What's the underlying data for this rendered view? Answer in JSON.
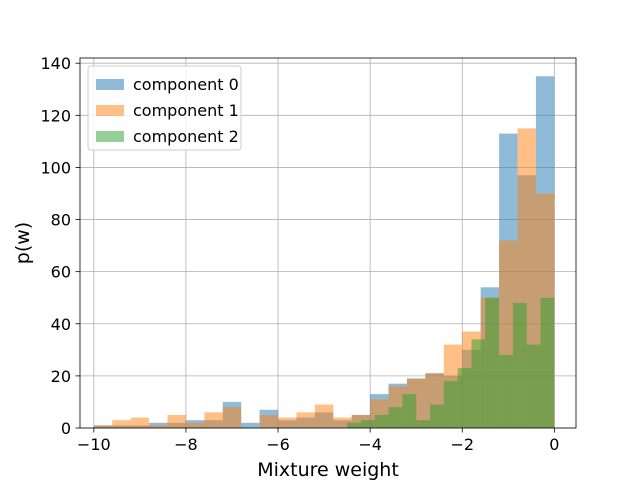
{
  "chart_data": {
    "type": "histogram",
    "xlabel": "Mixture weight",
    "ylabel": "p(w)",
    "xlim": [
      -10.3,
      0.47
    ],
    "ylim": [
      0,
      142
    ],
    "xticks": [
      -10,
      -8,
      -6,
      -4,
      -2,
      0
    ],
    "xtick_labels": [
      "−10",
      "−8",
      "−6",
      "−4",
      "−2",
      "0"
    ],
    "yticks": [
      0,
      20,
      40,
      60,
      80,
      100,
      120,
      140
    ],
    "ytick_labels": [
      "0",
      "20",
      "40",
      "60",
      "80",
      "100",
      "120",
      "140"
    ],
    "grid": true,
    "legend_position": "top-left",
    "series": [
      {
        "name": "component 0",
        "color": "#1f77b4",
        "alpha": 0.5,
        "bins": [
          [
            -10.0,
            -9.6,
            1
          ],
          [
            -9.6,
            -9.2,
            1
          ],
          [
            -9.2,
            -8.8,
            1
          ],
          [
            -8.8,
            -8.4,
            2
          ],
          [
            -8.4,
            -8.0,
            2
          ],
          [
            -8.0,
            -7.6,
            3
          ],
          [
            -7.6,
            -7.2,
            3
          ],
          [
            -7.2,
            -6.8,
            10
          ],
          [
            -6.8,
            -6.4,
            2
          ],
          [
            -6.4,
            -6.0,
            7
          ],
          [
            -6.0,
            -5.6,
            3
          ],
          [
            -5.6,
            -5.2,
            4
          ],
          [
            -5.2,
            -4.8,
            6
          ],
          [
            -4.8,
            -4.4,
            3
          ],
          [
            -4.4,
            -4.0,
            5
          ],
          [
            -4.0,
            -3.6,
            13
          ],
          [
            -3.6,
            -3.2,
            17
          ],
          [
            -3.2,
            -2.8,
            19
          ],
          [
            -2.8,
            -2.4,
            21
          ],
          [
            -2.4,
            -2.0,
            20
          ],
          [
            -2.0,
            -1.6,
            30
          ],
          [
            -1.6,
            -1.2,
            54
          ],
          [
            -1.2,
            -0.8,
            113
          ],
          [
            -0.8,
            -0.4,
            97
          ],
          [
            -0.4,
            0.0,
            135
          ]
        ]
      },
      {
        "name": "component 1",
        "color": "#ff7f0e",
        "alpha": 0.5,
        "bins": [
          [
            -10.0,
            -9.6,
            1
          ],
          [
            -9.6,
            -9.2,
            3
          ],
          [
            -9.2,
            -8.8,
            4
          ],
          [
            -8.8,
            -8.4,
            1
          ],
          [
            -8.4,
            -8.0,
            5
          ],
          [
            -8.0,
            -7.6,
            2
          ],
          [
            -7.6,
            -7.2,
            6
          ],
          [
            -7.2,
            -6.8,
            8
          ],
          [
            -6.8,
            -6.4,
            0
          ],
          [
            -6.4,
            -6.0,
            5
          ],
          [
            -6.0,
            -5.6,
            4
          ],
          [
            -5.6,
            -5.2,
            6
          ],
          [
            -5.2,
            -4.8,
            9
          ],
          [
            -4.8,
            -4.4,
            4
          ],
          [
            -4.4,
            -4.0,
            5
          ],
          [
            -4.0,
            -3.6,
            11
          ],
          [
            -3.6,
            -3.2,
            16
          ],
          [
            -3.2,
            -2.8,
            19
          ],
          [
            -2.8,
            -2.4,
            21
          ],
          [
            -2.4,
            -2.0,
            32
          ],
          [
            -2.0,
            -1.6,
            37
          ],
          [
            -1.6,
            -1.2,
            50
          ],
          [
            -1.2,
            -0.8,
            72
          ],
          [
            -0.8,
            -0.4,
            115
          ],
          [
            -0.4,
            0.0,
            90
          ]
        ]
      },
      {
        "name": "component 2",
        "color": "#2ca02c",
        "alpha": 0.5,
        "bins": [
          [
            -4.5,
            -4.2,
            2
          ],
          [
            -4.2,
            -3.9,
            3
          ],
          [
            -3.9,
            -3.6,
            5
          ],
          [
            -3.6,
            -3.3,
            8
          ],
          [
            -3.3,
            -3.0,
            13
          ],
          [
            -3.0,
            -2.7,
            3
          ],
          [
            -2.7,
            -2.4,
            9
          ],
          [
            -2.4,
            -2.1,
            18
          ],
          [
            -2.1,
            -1.8,
            23
          ],
          [
            -1.8,
            -1.5,
            34
          ],
          [
            -1.5,
            -1.2,
            50
          ],
          [
            -1.2,
            -0.9,
            28
          ],
          [
            -0.9,
            -0.6,
            48
          ],
          [
            -0.6,
            -0.3,
            32
          ],
          [
            -0.3,
            0.0,
            50
          ]
        ]
      }
    ]
  }
}
